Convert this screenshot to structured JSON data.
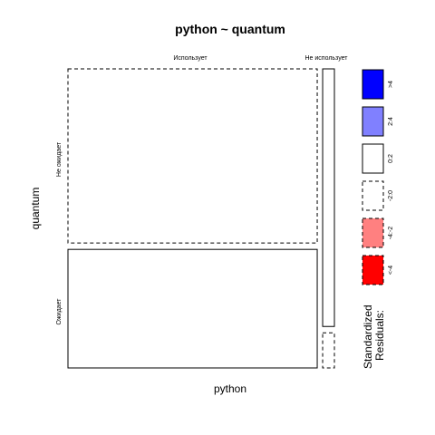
{
  "chart_data": {
    "type": "mosaic",
    "title": "python ~ quantum",
    "xlabel": "python",
    "ylabel": "quantum",
    "x_categories": [
      "Использует",
      "Не использует"
    ],
    "y_categories": [
      "Не ожидает",
      "Ожидает"
    ],
    "cells": [
      {
        "x": "Использует",
        "y": "Не ожидает",
        "proportion_x": 0.955,
        "proportion_y_within_x": 0.595,
        "residual_class": "-2:0"
      },
      {
        "x": "Использует",
        "y": "Ожидает",
        "proportion_x": 0.955,
        "proportion_y_within_x": 0.405,
        "residual_class": "0:2"
      },
      {
        "x": "Не использует",
        "y": "Не ожидает",
        "proportion_x": 0.045,
        "proportion_y_within_x": 0.88,
        "residual_class": "0:2"
      },
      {
        "x": "Не использует",
        "y": "Ожидает",
        "proportion_x": 0.045,
        "proportion_y_within_x": 0.12,
        "residual_class": "-2:0"
      }
    ],
    "legend": {
      "title": "Standardized\nResiduals:",
      "title_lines": [
        "Standardized",
        "Residuals:"
      ],
      "placement": "right",
      "entries": [
        {
          "label": ">4",
          "fill": "#0000ff",
          "dashed": false
        },
        {
          "label": "2:4",
          "fill": "#8080ff",
          "dashed": false
        },
        {
          "label": "0:2",
          "fill": "#ffffff",
          "dashed": false
        },
        {
          "label": "-2:0",
          "fill": "#ffffff",
          "dashed": true
        },
        {
          "label": "-4:-2",
          "fill": "#ff8080",
          "dashed": true
        },
        {
          "label": "<-4",
          "fill": "#ff0000",
          "dashed": true
        }
      ]
    }
  }
}
